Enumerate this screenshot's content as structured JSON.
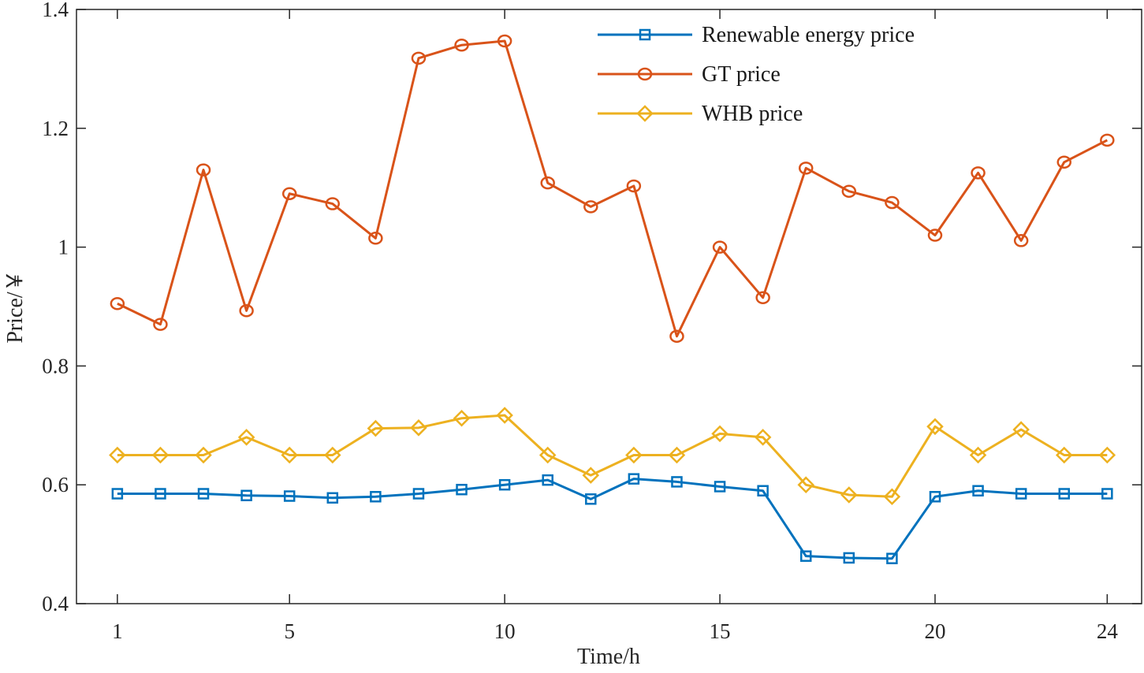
{
  "chart_data": {
    "type": "line",
    "title": "",
    "xlabel": "Time/h",
    "ylabel": "Price/￥",
    "xlim": [
      0.05,
      24.8
    ],
    "ylim": [
      0.4,
      1.4
    ],
    "xticks": [
      1,
      5,
      10,
      15,
      20,
      24
    ],
    "yticks": [
      0.4,
      0.6,
      0.8,
      1.0,
      1.2,
      1.4
    ],
    "ytick_labels": [
      "0.4",
      "0.6",
      "0.8",
      "1",
      "1.2",
      "1.4"
    ],
    "grid": false,
    "legend_position": "top-right",
    "x": [
      1,
      2,
      3,
      4,
      5,
      6,
      7,
      8,
      9,
      10,
      11,
      12,
      13,
      14,
      15,
      16,
      17,
      18,
      19,
      20,
      21,
      22,
      23,
      24
    ],
    "series": [
      {
        "name": "Renewable energy price",
        "color": "#0072BD",
        "marker": "square",
        "values": [
          0.585,
          0.585,
          0.585,
          0.582,
          0.581,
          0.578,
          0.58,
          0.585,
          0.592,
          0.6,
          0.608,
          0.576,
          0.61,
          0.605,
          0.597,
          0.59,
          0.48,
          0.477,
          0.476,
          0.58,
          0.59,
          0.585,
          0.585,
          0.585
        ]
      },
      {
        "name": "GT price",
        "color": "#D95319",
        "marker": "circle",
        "values": [
          0.905,
          0.87,
          1.13,
          0.893,
          1.09,
          1.073,
          1.015,
          1.318,
          1.34,
          1.347,
          1.108,
          1.068,
          1.103,
          0.85,
          1.0,
          0.915,
          1.133,
          1.094,
          1.075,
          1.02,
          1.125,
          1.011,
          1.143,
          1.18
        ]
      },
      {
        "name": "WHB price",
        "color": "#EDB120",
        "marker": "diamond",
        "values": [
          0.65,
          0.65,
          0.65,
          0.68,
          0.65,
          0.65,
          0.695,
          0.696,
          0.712,
          0.717,
          0.65,
          0.616,
          0.65,
          0.65,
          0.686,
          0.68,
          0.6,
          0.583,
          0.58,
          0.698,
          0.65,
          0.693,
          0.65,
          0.65
        ]
      }
    ]
  }
}
